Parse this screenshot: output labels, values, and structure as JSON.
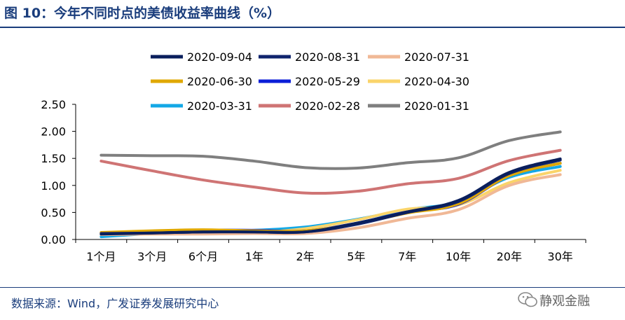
{
  "header": {
    "title": "图 10：今年不同时点的美债收益率曲线（%）"
  },
  "footer": {
    "source": "数据来源：Wind，广发证券发展研究中心",
    "watermark": "静观金融"
  },
  "chart_data": {
    "type": "line",
    "categories": [
      "1个月",
      "3个月",
      "6个月",
      "1年",
      "2年",
      "5年",
      "7年",
      "10年",
      "20年",
      "30年"
    ],
    "yticks": [
      "0.00",
      "0.50",
      "1.00",
      "1.50",
      "2.00",
      "2.50"
    ],
    "ylim": [
      0,
      2.5
    ],
    "legend_position": "top",
    "series": [
      {
        "name": "2020-09-04",
        "color": "#0a1f5c",
        "values": [
          0.1,
          0.12,
          0.14,
          0.14,
          0.14,
          0.3,
          0.51,
          0.72,
          1.24,
          1.49
        ]
      },
      {
        "name": "2020-08-31",
        "color": "#10246e",
        "values": [
          0.11,
          0.12,
          0.14,
          0.14,
          0.14,
          0.28,
          0.5,
          0.7,
          1.22,
          1.47
        ]
      },
      {
        "name": "2020-07-31",
        "color": "#f0b896",
        "values": [
          0.09,
          0.1,
          0.1,
          0.11,
          0.11,
          0.21,
          0.39,
          0.55,
          1.0,
          1.2
        ]
      },
      {
        "name": "2020-06-30",
        "color": "#e0a800",
        "values": [
          0.13,
          0.16,
          0.18,
          0.16,
          0.16,
          0.29,
          0.49,
          0.66,
          1.18,
          1.41
        ]
      },
      {
        "name": "2020-05-29",
        "color": "#0b1ed8",
        "values": [
          0.12,
          0.14,
          0.17,
          0.17,
          0.16,
          0.3,
          0.51,
          0.65,
          1.18,
          1.41
        ]
      },
      {
        "name": "2020-04-30",
        "color": "#fad46a",
        "values": [
          0.09,
          0.1,
          0.11,
          0.13,
          0.2,
          0.36,
          0.56,
          0.64,
          1.05,
          1.28
        ]
      },
      {
        "name": "2020-03-31",
        "color": "#13a8e6",
        "values": [
          0.05,
          0.11,
          0.15,
          0.17,
          0.23,
          0.37,
          0.55,
          0.7,
          1.15,
          1.35
        ]
      },
      {
        "name": "2020-02-28",
        "color": "#cf7474",
        "values": [
          1.45,
          1.27,
          1.1,
          0.97,
          0.86,
          0.89,
          1.03,
          1.13,
          1.46,
          1.65
        ]
      },
      {
        "name": "2020-01-31",
        "color": "#7f7f7f",
        "values": [
          1.56,
          1.55,
          1.54,
          1.45,
          1.33,
          1.32,
          1.42,
          1.51,
          1.83,
          1.99
        ]
      }
    ]
  }
}
